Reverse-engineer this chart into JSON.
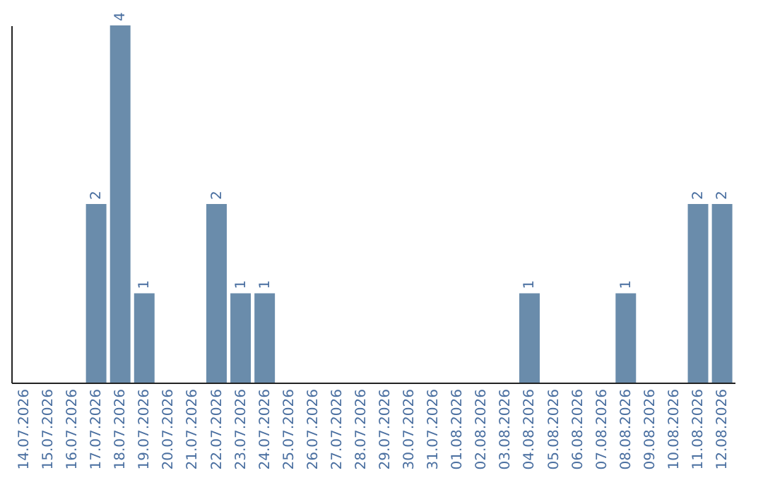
{
  "chart_data": {
    "type": "bar",
    "categories": [
      "14.07.2026",
      "15.07.2026",
      "16.07.2026",
      "17.07.2026",
      "18.07.2026",
      "19.07.2026",
      "20.07.2026",
      "21.07.2026",
      "22.07.2026",
      "23.07.2026",
      "24.07.2026",
      "25.07.2026",
      "26.07.2026",
      "27.07.2026",
      "28.07.2026",
      "29.07.2026",
      "30.07.2026",
      "31.07.2026",
      "01.08.2026",
      "02.08.2026",
      "03.08.2026",
      "04.08.2026",
      "05.08.2026",
      "06.08.2026",
      "07.08.2026",
      "08.08.2026",
      "09.08.2026",
      "10.08.2026",
      "11.08.2026",
      "12.08.2026"
    ],
    "values": [
      0,
      0,
      0,
      2,
      4,
      1,
      0,
      0,
      2,
      1,
      1,
      0,
      0,
      0,
      0,
      0,
      0,
      0,
      0,
      0,
      0,
      1,
      0,
      0,
      0,
      1,
      0,
      0,
      2,
      2
    ],
    "value_labels": [
      null,
      null,
      null,
      "2",
      "4",
      "1",
      null,
      null,
      "2",
      "1",
      "1",
      null,
      null,
      null,
      null,
      null,
      null,
      null,
      null,
      null,
      null,
      "1",
      null,
      null,
      null,
      "1",
      null,
      null,
      "2",
      "2"
    ],
    "color": "#6a8cab",
    "tick_labels": "x"
  }
}
